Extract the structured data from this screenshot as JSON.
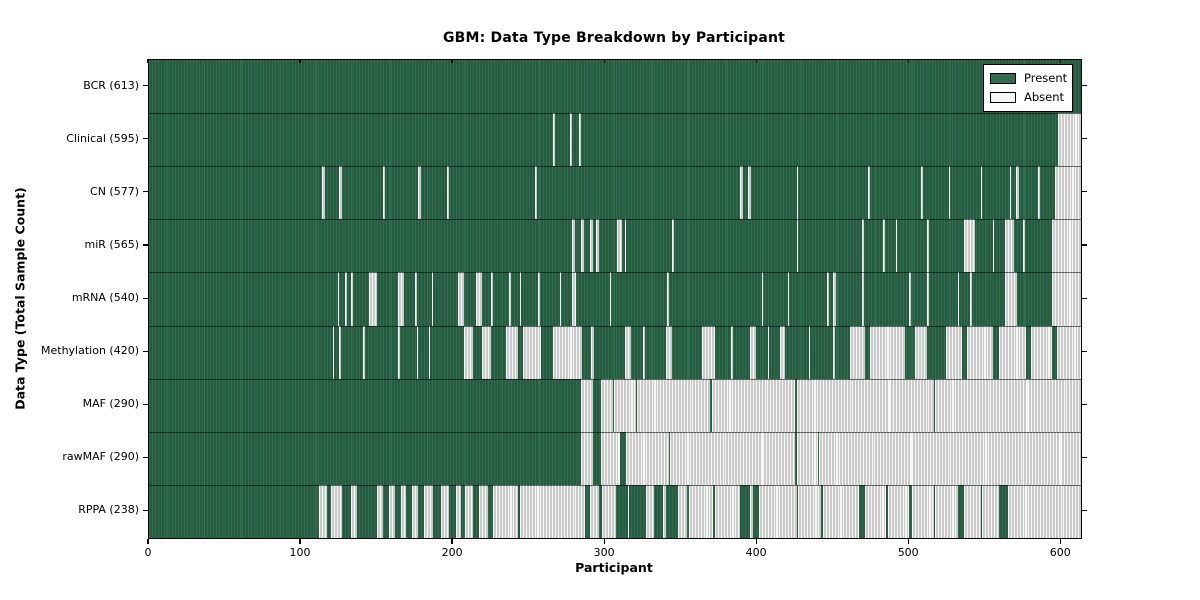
{
  "chart_data": {
    "type": "heatmap",
    "title": "GBM: Data Type Breakdown by Participant",
    "xlabel": "Participant",
    "ylabel": "Data Type (Total Sample Count)",
    "x_ticks": [
      0,
      100,
      200,
      300,
      400,
      500,
      600
    ],
    "x_range": [
      0,
      613
    ],
    "legend": {
      "present_label": "Present",
      "absent_label": "Absent",
      "position": "upper-right"
    },
    "colors": {
      "present": "#2e6e4f",
      "present_line": "#1d4833",
      "absent": "#f6f6f6",
      "absent_line": "#9f9f9f",
      "border": "#000000"
    },
    "grid": false,
    "rows": [
      {
        "label": "BCR",
        "count": 613,
        "absent_runs": []
      },
      {
        "label": "Clinical",
        "count": 595,
        "absent_runs": [
          [
            266,
            267
          ],
          [
            277,
            278
          ],
          [
            283,
            284
          ],
          [
            598,
            613
          ]
        ]
      },
      {
        "label": "CN",
        "count": 577,
        "absent_runs": [
          [
            114,
            116
          ],
          [
            125,
            127
          ],
          [
            154,
            155
          ],
          [
            177,
            179
          ],
          [
            196,
            197
          ],
          [
            254,
            255
          ],
          [
            389,
            391
          ],
          [
            394,
            396
          ],
          [
            426,
            427
          ],
          [
            473,
            474
          ],
          [
            508,
            509
          ],
          [
            526,
            527
          ],
          [
            547,
            548
          ],
          [
            566,
            567
          ],
          [
            570,
            572
          ],
          [
            585,
            586
          ],
          [
            596,
            613
          ]
        ]
      },
      {
        "label": "miR",
        "count": 565,
        "absent_runs": [
          [
            278,
            280
          ],
          [
            284,
            286
          ],
          [
            290,
            292
          ],
          [
            294,
            296
          ],
          [
            308,
            311
          ],
          [
            313,
            314
          ],
          [
            344,
            345
          ],
          [
            426,
            427
          ],
          [
            469,
            470
          ],
          [
            483,
            484
          ],
          [
            491,
            492
          ],
          [
            512,
            513
          ],
          [
            536,
            543
          ],
          [
            555,
            556
          ],
          [
            563,
            569
          ],
          [
            575,
            576
          ],
          [
            594,
            613
          ]
        ]
      },
      {
        "label": "mRNA",
        "count": 540,
        "absent_runs": [
          [
            124,
            125
          ],
          [
            129,
            130
          ],
          [
            133,
            134
          ],
          [
            145,
            150
          ],
          [
            164,
            168
          ],
          [
            175,
            176
          ],
          [
            186,
            187
          ],
          [
            203,
            207
          ],
          [
            215,
            219
          ],
          [
            225,
            226
          ],
          [
            237,
            238
          ],
          [
            244,
            245
          ],
          [
            256,
            257
          ],
          [
            270,
            271
          ],
          [
            278,
            281
          ],
          [
            303,
            304
          ],
          [
            341,
            342
          ],
          [
            403,
            404
          ],
          [
            420,
            421
          ],
          [
            446,
            447
          ],
          [
            450,
            452
          ],
          [
            469,
            470
          ],
          [
            500,
            501
          ],
          [
            512,
            513
          ],
          [
            532,
            533
          ],
          [
            540,
            541
          ],
          [
            563,
            571
          ],
          [
            594,
            613
          ]
        ]
      },
      {
        "label": "Methylation",
        "count": 420,
        "absent_runs": [
          [
            121,
            122
          ],
          [
            125,
            126
          ],
          [
            141,
            142
          ],
          [
            164,
            165
          ],
          [
            176,
            177
          ],
          [
            184,
            185
          ],
          [
            207,
            213
          ],
          [
            219,
            225
          ],
          [
            235,
            243
          ],
          [
            246,
            258
          ],
          [
            266,
            285
          ],
          [
            291,
            293
          ],
          [
            313,
            317
          ],
          [
            325,
            326
          ],
          [
            340,
            344
          ],
          [
            364,
            372
          ],
          [
            383,
            384
          ],
          [
            395,
            399
          ],
          [
            407,
            408
          ],
          [
            415,
            418
          ],
          [
            434,
            435
          ],
          [
            450,
            451
          ],
          [
            461,
            471
          ],
          [
            474,
            497
          ],
          [
            504,
            512
          ],
          [
            524,
            535
          ],
          [
            538,
            555
          ],
          [
            559,
            577
          ],
          [
            580,
            594
          ],
          [
            597,
            613
          ]
        ]
      },
      {
        "label": "MAF",
        "count": 290,
        "absent_runs": [
          [
            284,
            292
          ],
          [
            297,
            305
          ],
          [
            306,
            320
          ],
          [
            321,
            369
          ],
          [
            370,
            425
          ],
          [
            426,
            516
          ],
          [
            517,
            613
          ]
        ]
      },
      {
        "label": "rawMAF",
        "count": 290,
        "absent_runs": [
          [
            284,
            292
          ],
          [
            297,
            310
          ],
          [
            314,
            342
          ],
          [
            343,
            425
          ],
          [
            426,
            440
          ],
          [
            441,
            613
          ]
        ]
      },
      {
        "label": "RPPA",
        "count": 238,
        "absent_runs": [
          [
            112,
            117
          ],
          [
            120,
            127
          ],
          [
            133,
            137
          ],
          [
            150,
            154
          ],
          [
            158,
            162
          ],
          [
            166,
            169
          ],
          [
            173,
            177
          ],
          [
            181,
            187
          ],
          [
            192,
            197
          ],
          [
            202,
            205
          ],
          [
            208,
            213
          ],
          [
            217,
            223
          ],
          [
            226,
            243
          ],
          [
            244,
            287
          ],
          [
            290,
            296
          ],
          [
            298,
            307
          ],
          [
            315,
            316
          ],
          [
            327,
            332
          ],
          [
            338,
            340
          ],
          [
            348,
            354
          ],
          [
            355,
            371
          ],
          [
            372,
            389
          ],
          [
            395,
            397
          ],
          [
            401,
            426
          ],
          [
            427,
            442
          ],
          [
            443,
            467
          ],
          [
            471,
            485
          ],
          [
            486,
            500
          ],
          [
            502,
            516
          ],
          [
            517,
            532
          ],
          [
            536,
            547
          ],
          [
            548,
            559
          ],
          [
            565,
            613
          ]
        ]
      }
    ]
  }
}
